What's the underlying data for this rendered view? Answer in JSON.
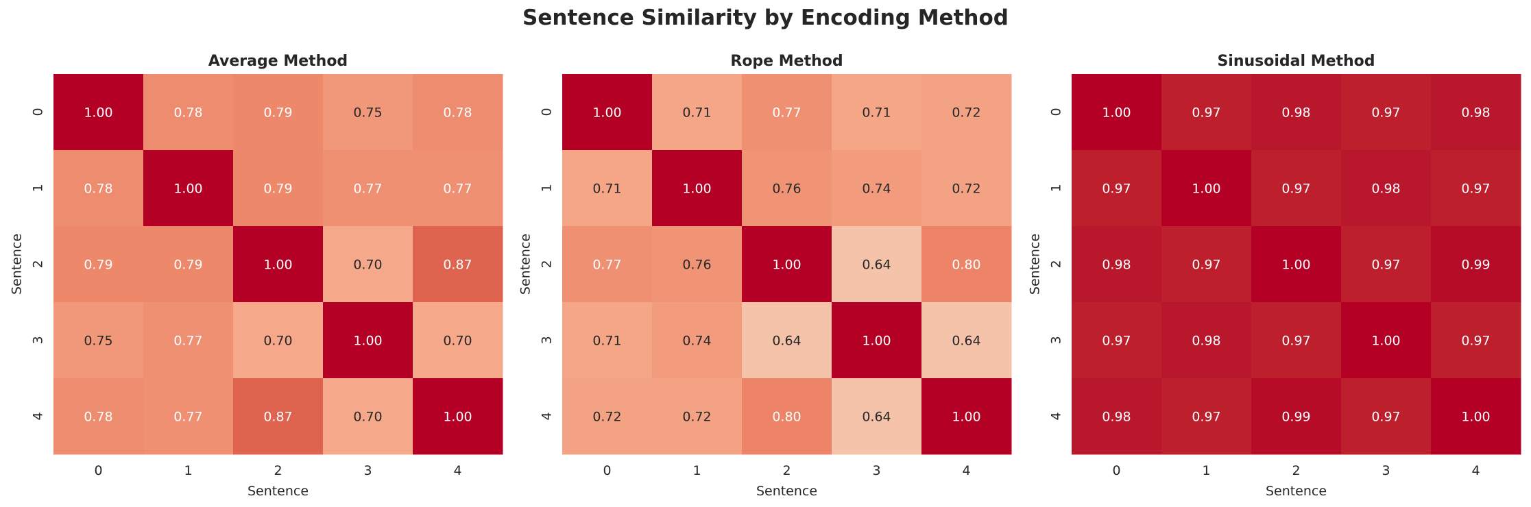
{
  "title": "Sentence Similarity by Encoding Method",
  "colormap_stops": [
    [
      0.64,
      "#f4c3aa"
    ],
    [
      0.7,
      "#f6a98a"
    ],
    [
      0.75,
      "#f2987a"
    ],
    [
      0.78,
      "#ee8c6f"
    ],
    [
      0.8,
      "#ed8467"
    ],
    [
      0.87,
      "#de6450"
    ],
    [
      0.97,
      "#bd1f2d"
    ],
    [
      0.98,
      "#b9172b"
    ],
    [
      1.0,
      "#b30024"
    ]
  ],
  "chart_data": [
    {
      "type": "heatmap",
      "title": "Average Method",
      "xlabel": "Sentence",
      "ylabel": "Sentence",
      "xticklabels": [
        "0",
        "1",
        "2",
        "3",
        "4"
      ],
      "yticklabels": [
        "0",
        "1",
        "2",
        "3",
        "4"
      ],
      "values": [
        [
          1.0,
          0.78,
          0.79,
          0.75,
          0.78
        ],
        [
          0.78,
          1.0,
          0.79,
          0.77,
          0.77
        ],
        [
          0.79,
          0.79,
          1.0,
          0.7,
          0.87
        ],
        [
          0.75,
          0.77,
          0.7,
          1.0,
          0.7
        ],
        [
          0.78,
          0.77,
          0.87,
          0.7,
          1.0
        ]
      ]
    },
    {
      "type": "heatmap",
      "title": "Rope Method",
      "xlabel": "Sentence",
      "ylabel": "Sentence",
      "xticklabels": [
        "0",
        "1",
        "2",
        "3",
        "4"
      ],
      "yticklabels": [
        "0",
        "1",
        "2",
        "3",
        "4"
      ],
      "values": [
        [
          1.0,
          0.71,
          0.77,
          0.71,
          0.72
        ],
        [
          0.71,
          1.0,
          0.76,
          0.74,
          0.72
        ],
        [
          0.77,
          0.76,
          1.0,
          0.64,
          0.8
        ],
        [
          0.71,
          0.74,
          0.64,
          1.0,
          0.64
        ],
        [
          0.72,
          0.72,
          0.8,
          0.64,
          1.0
        ]
      ]
    },
    {
      "type": "heatmap",
      "title": "Sinusoidal Method",
      "xlabel": "Sentence",
      "ylabel": "Sentence",
      "xticklabels": [
        "0",
        "1",
        "2",
        "3",
        "4"
      ],
      "yticklabels": [
        "0",
        "1",
        "2",
        "3",
        "4"
      ],
      "values": [
        [
          1.0,
          0.97,
          0.98,
          0.97,
          0.98
        ],
        [
          0.97,
          1.0,
          0.97,
          0.98,
          0.97
        ],
        [
          0.98,
          0.97,
          1.0,
          0.97,
          0.99
        ],
        [
          0.97,
          0.98,
          0.97,
          1.0,
          0.97
        ],
        [
          0.98,
          0.97,
          0.99,
          0.97,
          1.0
        ]
      ]
    }
  ]
}
